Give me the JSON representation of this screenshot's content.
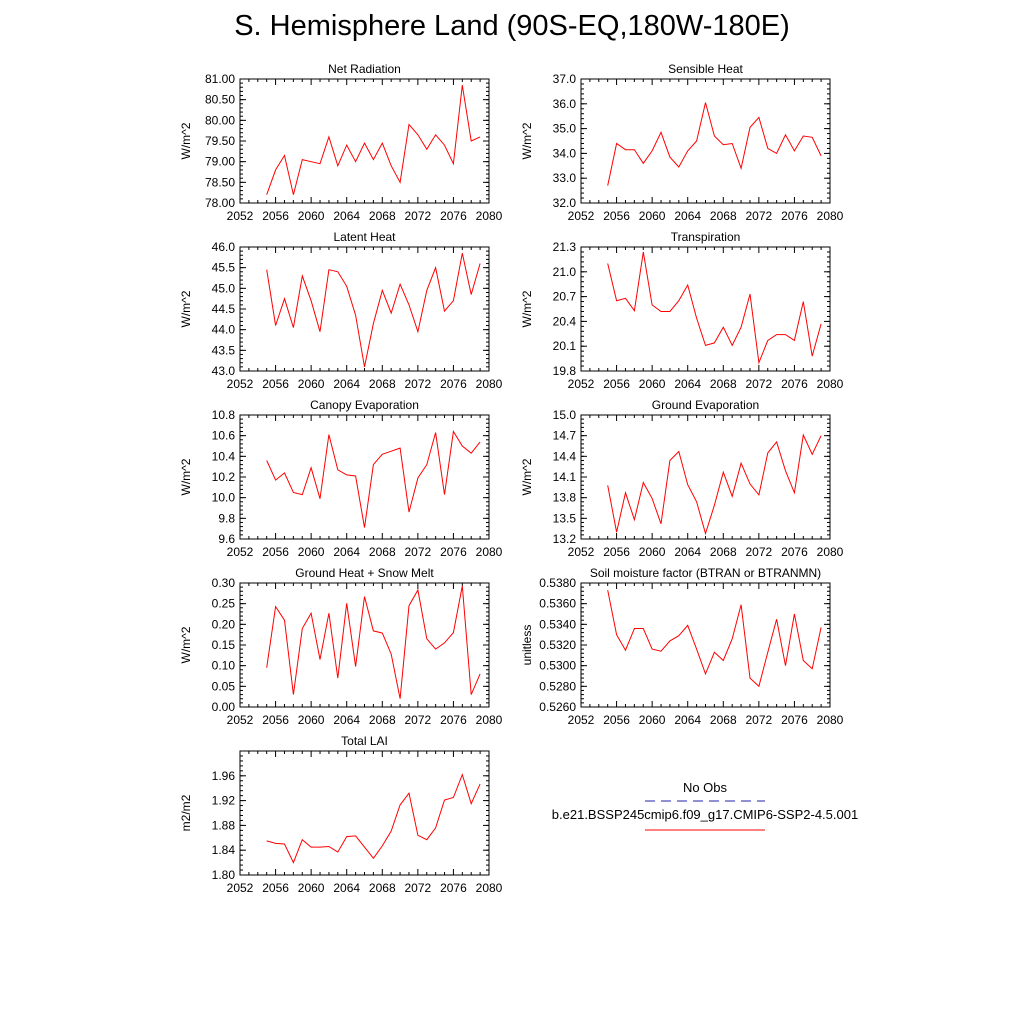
{
  "page": {
    "title": "S. Hemisphere Land (90S-EQ,180W-180E)"
  },
  "legend": {
    "obs_label": "No Obs",
    "case_label": "b.e21.BSSP245cmip6.f09_g17.CMIP6-SSP2-4.5.001",
    "obs_color": "#2222aa",
    "case_color": "#ff0000"
  },
  "chart_data": [
    {
      "type": "line",
      "title": "Net Radiation",
      "ylabel": "W/m^2",
      "xlim": [
        2052,
        2080
      ],
      "xticks": [
        "2052",
        "2056",
        "2060",
        "2064",
        "2068",
        "2072",
        "2076",
        "2080"
      ],
      "ylim": [
        78.0,
        81.0
      ],
      "yticks": [
        "78.00",
        "78.50",
        "79.00",
        "79.50",
        "80.00",
        "80.50",
        "81.00"
      ],
      "series": [
        {
          "color": "#ff0000",
          "x": [
            2055,
            2056,
            2057,
            2058,
            2059,
            2060,
            2061,
            2062,
            2063,
            2064,
            2065,
            2066,
            2067,
            2068,
            2069,
            2070,
            2071,
            2072,
            2073,
            2074,
            2075,
            2076,
            2077,
            2078,
            2079
          ],
          "values": [
            78.2,
            78.8,
            79.15,
            78.2,
            79.05,
            79.0,
            78.95,
            79.6,
            78.9,
            79.4,
            79.0,
            79.45,
            79.05,
            79.45,
            78.9,
            78.5,
            79.9,
            79.65,
            79.3,
            79.65,
            79.4,
            78.95,
            80.85,
            79.5,
            79.6
          ]
        }
      ]
    },
    {
      "type": "line",
      "title": "Sensible Heat",
      "ylabel": "W/m^2",
      "xlim": [
        2052,
        2080
      ],
      "xticks": [
        "2052",
        "2056",
        "2060",
        "2064",
        "2068",
        "2072",
        "2076",
        "2080"
      ],
      "ylim": [
        32.0,
        37.0
      ],
      "yticks": [
        "32.0",
        "33.0",
        "34.0",
        "35.0",
        "36.0",
        "37.0"
      ],
      "series": [
        {
          "color": "#ff0000",
          "x": [
            2055,
            2056,
            2057,
            2058,
            2059,
            2060,
            2061,
            2062,
            2063,
            2064,
            2065,
            2066,
            2067,
            2068,
            2069,
            2070,
            2071,
            2072,
            2073,
            2074,
            2075,
            2076,
            2077,
            2078,
            2079
          ],
          "values": [
            32.7,
            34.4,
            34.15,
            34.15,
            33.6,
            34.1,
            34.85,
            33.85,
            33.45,
            34.1,
            34.5,
            36.05,
            34.7,
            34.35,
            34.4,
            33.4,
            35.05,
            35.45,
            34.2,
            34.0,
            34.75,
            34.1,
            34.7,
            34.65,
            33.9
          ]
        }
      ]
    },
    {
      "type": "line",
      "title": "Latent Heat",
      "ylabel": "W/m^2",
      "xlim": [
        2052,
        2080
      ],
      "xticks": [
        "2052",
        "2056",
        "2060",
        "2064",
        "2068",
        "2072",
        "2076",
        "2080"
      ],
      "ylim": [
        43.0,
        46.0
      ],
      "yticks": [
        "43.0",
        "43.5",
        "44.0",
        "44.5",
        "45.0",
        "45.5",
        "46.0"
      ],
      "series": [
        {
          "color": "#ff0000",
          "x": [
            2055,
            2056,
            2057,
            2058,
            2059,
            2060,
            2061,
            2062,
            2063,
            2064,
            2065,
            2066,
            2067,
            2068,
            2069,
            2070,
            2071,
            2072,
            2073,
            2074,
            2075,
            2076,
            2077,
            2078,
            2079
          ],
          "values": [
            45.45,
            44.1,
            44.75,
            44.05,
            45.3,
            44.7,
            43.95,
            45.45,
            45.4,
            45.05,
            44.35,
            43.1,
            44.15,
            44.95,
            44.4,
            45.1,
            44.6,
            43.95,
            44.95,
            45.5,
            44.45,
            44.7,
            45.85,
            44.85,
            45.6
          ]
        }
      ]
    },
    {
      "type": "line",
      "title": "Transpiration",
      "ylabel": "W/m^2",
      "xlim": [
        2052,
        2080
      ],
      "xticks": [
        "2052",
        "2056",
        "2060",
        "2064",
        "2068",
        "2072",
        "2076",
        "2080"
      ],
      "ylim": [
        19.8,
        21.3
      ],
      "yticks": [
        "19.8",
        "20.1",
        "20.4",
        "20.7",
        "21.0",
        "21.3"
      ],
      "series": [
        {
          "color": "#ff0000",
          "x": [
            2055,
            2056,
            2057,
            2058,
            2059,
            2060,
            2061,
            2062,
            2063,
            2064,
            2065,
            2066,
            2067,
            2068,
            2069,
            2070,
            2071,
            2072,
            2073,
            2074,
            2075,
            2076,
            2077,
            2078,
            2079
          ],
          "values": [
            21.1,
            20.65,
            20.68,
            20.53,
            21.24,
            20.6,
            20.52,
            20.52,
            20.65,
            20.84,
            20.44,
            20.11,
            20.14,
            20.33,
            20.11,
            20.33,
            20.73,
            19.9,
            20.17,
            20.24,
            20.24,
            20.17,
            20.64,
            19.98,
            20.37
          ]
        }
      ]
    },
    {
      "type": "line",
      "title": "Canopy Evaporation",
      "ylabel": "W/m^2",
      "xlim": [
        2052,
        2080
      ],
      "xticks": [
        "2052",
        "2056",
        "2060",
        "2064",
        "2068",
        "2072",
        "2076",
        "2080"
      ],
      "ylim": [
        9.6,
        10.8
      ],
      "yticks": [
        "9.6",
        "9.8",
        "10.0",
        "10.2",
        "10.4",
        "10.6",
        "10.8"
      ],
      "series": [
        {
          "color": "#ff0000",
          "x": [
            2055,
            2056,
            2057,
            2058,
            2059,
            2060,
            2061,
            2062,
            2063,
            2064,
            2065,
            2066,
            2067,
            2068,
            2069,
            2070,
            2071,
            2072,
            2073,
            2074,
            2075,
            2076,
            2077,
            2078,
            2079
          ],
          "values": [
            10.36,
            10.17,
            10.24,
            10.05,
            10.03,
            10.29,
            9.99,
            10.61,
            10.27,
            10.22,
            10.21,
            9.71,
            10.32,
            10.42,
            10.45,
            10.48,
            9.86,
            10.19,
            10.32,
            10.63,
            10.03,
            10.64,
            10.5,
            10.43,
            10.54
          ]
        }
      ]
    },
    {
      "type": "line",
      "title": "Ground Evaporation",
      "ylabel": "W/m^2",
      "xlim": [
        2052,
        2080
      ],
      "xticks": [
        "2052",
        "2056",
        "2060",
        "2064",
        "2068",
        "2072",
        "2076",
        "2080"
      ],
      "ylim": [
        13.2,
        15.0
      ],
      "yticks": [
        "13.2",
        "13.5",
        "13.8",
        "14.1",
        "14.4",
        "14.7",
        "15.0"
      ],
      "series": [
        {
          "color": "#ff0000",
          "x": [
            2055,
            2056,
            2057,
            2058,
            2059,
            2060,
            2061,
            2062,
            2063,
            2064,
            2065,
            2066,
            2067,
            2068,
            2069,
            2070,
            2071,
            2072,
            2073,
            2074,
            2075,
            2076,
            2077,
            2078,
            2079
          ],
          "values": [
            13.98,
            13.3,
            13.87,
            13.48,
            14.02,
            13.79,
            13.42,
            14.34,
            14.47,
            13.99,
            13.74,
            13.28,
            13.69,
            14.17,
            13.82,
            14.3,
            14.0,
            13.84,
            14.45,
            14.61,
            14.19,
            13.87,
            14.71,
            14.43,
            14.7
          ]
        }
      ]
    },
    {
      "type": "line",
      "title": "Ground Heat + Snow Melt",
      "ylabel": "W/m^2",
      "xlim": [
        2052,
        2080
      ],
      "xticks": [
        "2052",
        "2056",
        "2060",
        "2064",
        "2068",
        "2072",
        "2076",
        "2080"
      ],
      "ylim": [
        0.0,
        0.3
      ],
      "yticks": [
        "0.00",
        "0.05",
        "0.10",
        "0.15",
        "0.20",
        "0.25",
        "0.30"
      ],
      "series": [
        {
          "color": "#ff0000",
          "x": [
            2055,
            2056,
            2057,
            2058,
            2059,
            2060,
            2061,
            2062,
            2063,
            2064,
            2065,
            2066,
            2067,
            2068,
            2069,
            2070,
            2071,
            2072,
            2073,
            2074,
            2075,
            2076,
            2077,
            2078,
            2079
          ],
          "values": [
            0.095,
            0.243,
            0.21,
            0.03,
            0.19,
            0.227,
            0.115,
            0.227,
            0.07,
            0.251,
            0.098,
            0.267,
            0.184,
            0.179,
            0.128,
            0.02,
            0.245,
            0.283,
            0.165,
            0.14,
            0.155,
            0.18,
            0.293,
            0.03,
            0.08
          ]
        }
      ]
    },
    {
      "type": "line",
      "title": "Soil moisture factor (BTRAN or BTRANMN)",
      "ylabel": "unitless",
      "xlim": [
        2052,
        2080
      ],
      "xticks": [
        "2052",
        "2056",
        "2060",
        "2064",
        "2068",
        "2072",
        "2076",
        "2080"
      ],
      "ylim": [
        0.526,
        0.538
      ],
      "yticks": [
        "0.5260",
        "0.5280",
        "0.5300",
        "0.5320",
        "0.5340",
        "0.5360",
        "0.5380"
      ],
      "series": [
        {
          "color": "#ff0000",
          "x": [
            2055,
            2056,
            2057,
            2058,
            2059,
            2060,
            2061,
            2062,
            2063,
            2064,
            2065,
            2066,
            2067,
            2068,
            2069,
            2070,
            2071,
            2072,
            2073,
            2074,
            2075,
            2076,
            2077,
            2078,
            2079
          ],
          "values": [
            0.5373,
            0.533,
            0.5315,
            0.5336,
            0.5336,
            0.5316,
            0.5314,
            0.5324,
            0.5329,
            0.5339,
            0.5316,
            0.5292,
            0.5313,
            0.5305,
            0.5326,
            0.5359,
            0.5288,
            0.528,
            0.5313,
            0.5345,
            0.53,
            0.535,
            0.5305,
            0.5297,
            0.5337
          ]
        }
      ]
    },
    {
      "type": "line",
      "title": "Total LAI",
      "ylabel": "m2/m2",
      "xlim": [
        2052,
        2080
      ],
      "xticks": [
        "2052",
        "2056",
        "2060",
        "2064",
        "2068",
        "2072",
        "2076",
        "2080"
      ],
      "ylim": [
        1.8,
        2.0
      ],
      "yticks": [
        "1.80",
        "1.84",
        "1.88",
        "1.92",
        "1.96"
      ],
      "series": [
        {
          "color": "#ff0000",
          "x": [
            2055,
            2056,
            2057,
            2058,
            2059,
            2060,
            2061,
            2062,
            2063,
            2064,
            2065,
            2066,
            2067,
            2068,
            2069,
            2070,
            2071,
            2072,
            2073,
            2074,
            2075,
            2076,
            2077,
            2078,
            2079
          ],
          "values": [
            1.855,
            1.851,
            1.85,
            1.82,
            1.857,
            1.845,
            1.845,
            1.846,
            1.837,
            1.862,
            1.863,
            1.845,
            1.827,
            1.847,
            1.871,
            1.913,
            1.932,
            1.864,
            1.857,
            1.876,
            1.921,
            1.925,
            1.962,
            1.915,
            1.947
          ]
        }
      ]
    }
  ]
}
